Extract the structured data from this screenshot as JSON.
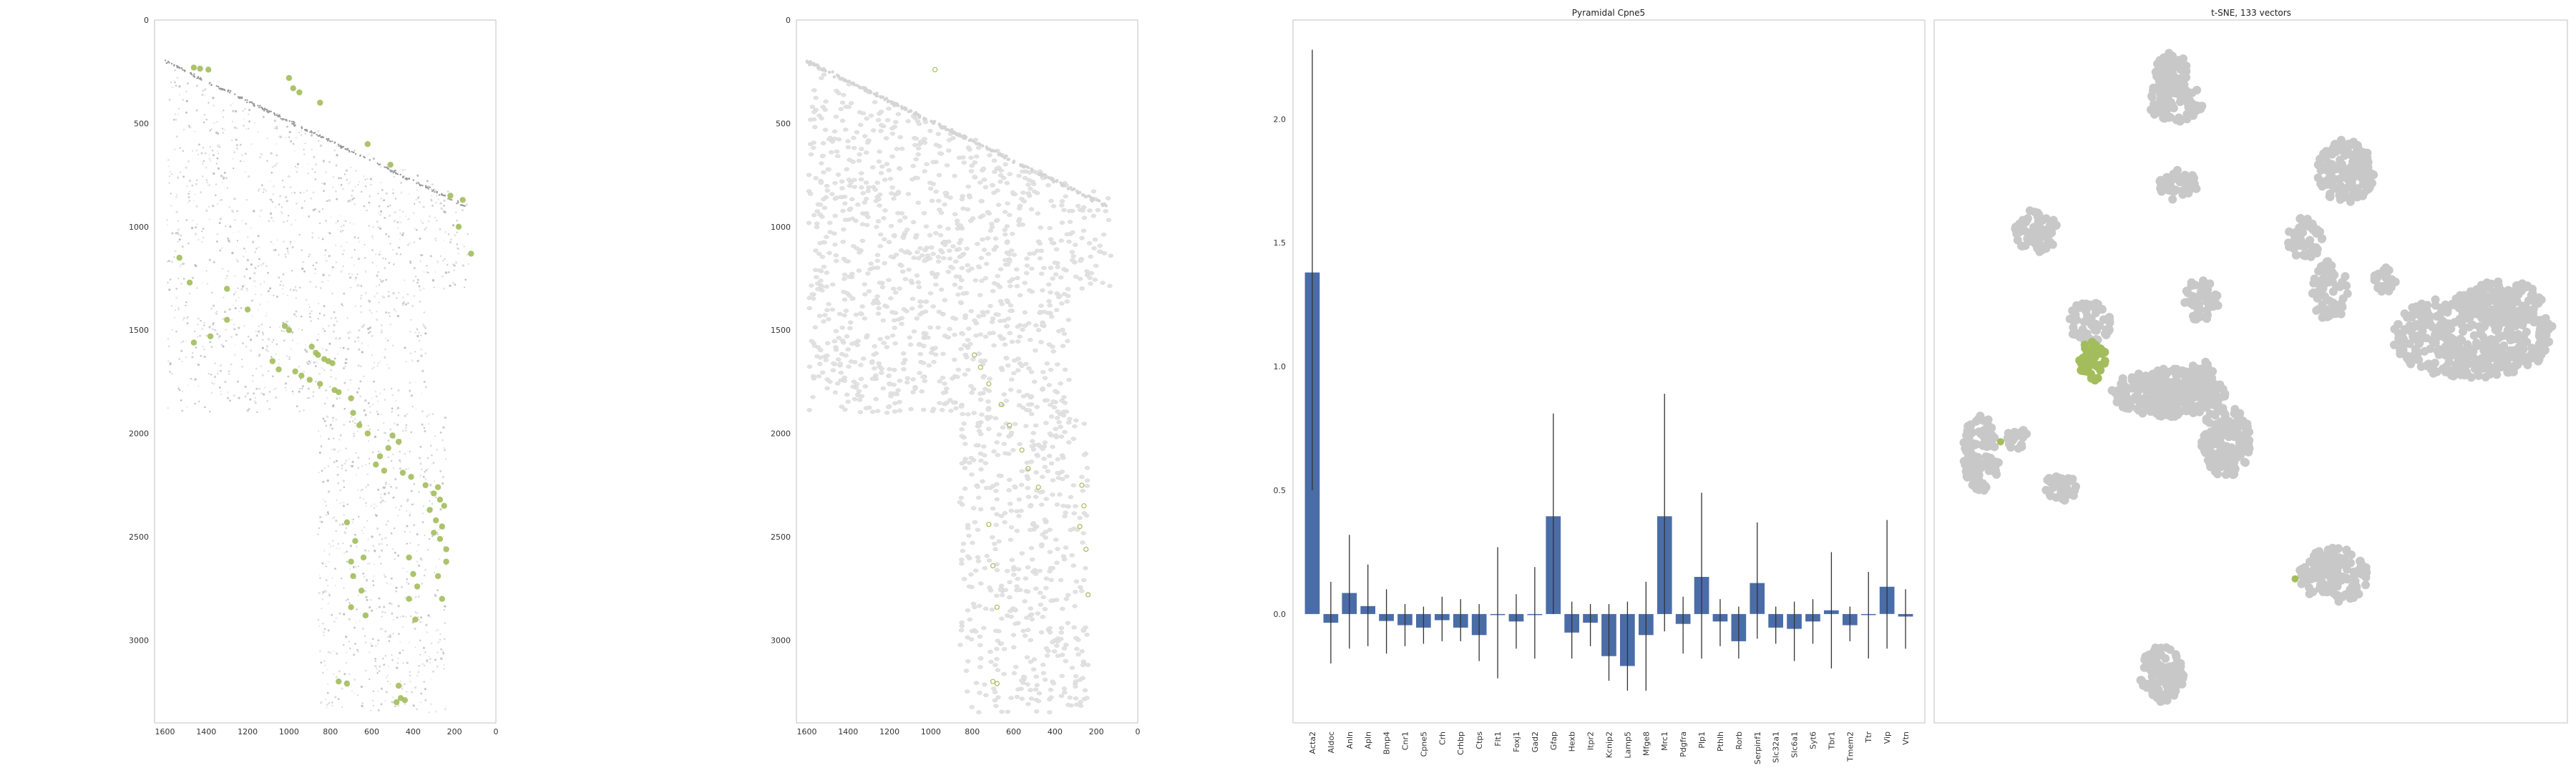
{
  "colors": {
    "highlight": "#a3bd5c",
    "bar": "#4a6da7",
    "tsne_gray": "#c8c8c8",
    "tissue_gray": "#e2e2e2",
    "axis": "#cccccc"
  },
  "chart_data": [
    {
      "type": "scatter",
      "title": "",
      "xlim": [
        1650,
        0
      ],
      "ylim": [
        3400,
        0
      ],
      "x_ticks": [
        "1600",
        "1400",
        "1200",
        "1000",
        "800",
        "600",
        "400",
        "200",
        "0"
      ],
      "y_ticks": [
        "0",
        "500",
        "1000",
        "1500",
        "2000",
        "2500",
        "3000"
      ],
      "background": "spatial tissue density (grayscale)",
      "highlight_points": [
        [
          1460,
          230
        ],
        [
          1430,
          235
        ],
        [
          1390,
          240
        ],
        [
          1000,
          280
        ],
        [
          980,
          330
        ],
        [
          950,
          350
        ],
        [
          850,
          400
        ],
        [
          620,
          600
        ],
        [
          510,
          700
        ],
        [
          220,
          850
        ],
        [
          160,
          870
        ],
        [
          1530,
          1150
        ],
        [
          1480,
          1270
        ],
        [
          1300,
          1450
        ],
        [
          1380,
          1530
        ],
        [
          1460,
          1560
        ],
        [
          1020,
          1480
        ],
        [
          1000,
          1500
        ],
        [
          890,
          1580
        ],
        [
          870,
          1610
        ],
        [
          860,
          1620
        ],
        [
          830,
          1640
        ],
        [
          810,
          1650
        ],
        [
          790,
          1660
        ],
        [
          1080,
          1650
        ],
        [
          1050,
          1690
        ],
        [
          970,
          1700
        ],
        [
          940,
          1720
        ],
        [
          900,
          1740
        ],
        [
          850,
          1760
        ],
        [
          780,
          1790
        ],
        [
          760,
          1800
        ],
        [
          700,
          1830
        ],
        [
          690,
          1900
        ],
        [
          660,
          1960
        ],
        [
          620,
          2000
        ],
        [
          500,
          2010
        ],
        [
          470,
          2040
        ],
        [
          520,
          2070
        ],
        [
          560,
          2110
        ],
        [
          580,
          2150
        ],
        [
          540,
          2180
        ],
        [
          450,
          2190
        ],
        [
          410,
          2210
        ],
        [
          340,
          2250
        ],
        [
          280,
          2260
        ],
        [
          300,
          2290
        ],
        [
          270,
          2320
        ],
        [
          250,
          2350
        ],
        [
          320,
          2370
        ],
        [
          290,
          2420
        ],
        [
          260,
          2450
        ],
        [
          300,
          2480
        ],
        [
          270,
          2510
        ],
        [
          240,
          2560
        ],
        [
          720,
          2430
        ],
        [
          680,
          2520
        ],
        [
          640,
          2600
        ],
        [
          700,
          2620
        ],
        [
          690,
          2690
        ],
        [
          650,
          2760
        ],
        [
          700,
          2840
        ],
        [
          630,
          2880
        ],
        [
          420,
          2600
        ],
        [
          400,
          2680
        ],
        [
          380,
          2740
        ],
        [
          420,
          2800
        ],
        [
          390,
          2900
        ],
        [
          760,
          3200
        ],
        [
          720,
          3210
        ],
        [
          470,
          3220
        ],
        [
          460,
          3280
        ],
        [
          440,
          3290
        ],
        [
          480,
          3300
        ],
        [
          260,
          2800
        ],
        [
          280,
          2690
        ],
        [
          240,
          2620
        ],
        [
          1300,
          1300
        ],
        [
          1200,
          1400
        ],
        [
          120,
          1130
        ],
        [
          180,
          1000
        ]
      ]
    },
    {
      "type": "scatter",
      "title": "",
      "xlim": [
        1650,
        0
      ],
      "ylim": [
        3400,
        0
      ],
      "x_ticks": [
        "1600",
        "1400",
        "1200",
        "1000",
        "800",
        "600",
        "400",
        "200",
        "0"
      ],
      "y_ticks": [
        "0",
        "500",
        "1000",
        "1500",
        "2000",
        "2500",
        "3000"
      ],
      "background": "segmented cells (light gray outlines)",
      "highlight_points": [
        [
          980,
          240
        ],
        [
          790,
          1620
        ],
        [
          760,
          1680
        ],
        [
          720,
          1760
        ],
        [
          660,
          1860
        ],
        [
          620,
          1960
        ],
        [
          560,
          2080
        ],
        [
          530,
          2170
        ],
        [
          480,
          2260
        ],
        [
          270,
          2250
        ],
        [
          260,
          2350
        ],
        [
          280,
          2450
        ],
        [
          250,
          2560
        ],
        [
          720,
          2440
        ],
        [
          700,
          2640
        ],
        [
          680,
          2840
        ],
        [
          700,
          3200
        ],
        [
          680,
          3210
        ],
        [
          240,
          2780
        ]
      ]
    },
    {
      "type": "bar",
      "title": "Pyramidal Cpne5",
      "xlabel": "",
      "ylabel": "",
      "ylim": [
        -0.44,
        2.4
      ],
      "y_ticks": [
        0.0,
        0.5,
        1.0,
        1.5,
        2.0
      ],
      "y_tick_labels": [
        "0.0",
        "0.5",
        "1.0",
        "1.5",
        "2.0"
      ],
      "categories": [
        "Acta2",
        "Aldoc",
        "Anln",
        "Apln",
        "Bmp4",
        "Cnr1",
        "Cpne5",
        "Crh",
        "Crhbp",
        "Ctps",
        "Flt1",
        "Foxj1",
        "Gad2",
        "Gfap",
        "Hexb",
        "Itpr2",
        "Kcnip2",
        "Lamp5",
        "Mfge8",
        "Mrc1",
        "Pdgfra",
        "Plp1",
        "Pthlh",
        "Rorb",
        "Serpinf1",
        "Slc32a1",
        "Slc6a1",
        "Syt6",
        "Tbr1",
        "Tmem2",
        "Ttr",
        "Vip",
        "Vtn"
      ],
      "values": [
        1.38,
        -0.035,
        0.085,
        0.032,
        -0.028,
        -0.045,
        -0.055,
        -0.025,
        -0.055,
        -0.085,
        0.0,
        -0.03,
        0.0,
        0.395,
        -0.075,
        -0.035,
        -0.17,
        -0.21,
        -0.085,
        0.395,
        -0.04,
        0.15,
        -0.03,
        -0.11,
        0.125,
        -0.055,
        -0.06,
        -0.03,
        0.015,
        -0.045,
        0.0,
        0.11,
        -0.01
      ],
      "err_low": [
        0.5,
        -0.2,
        -0.14,
        -0.13,
        -0.16,
        -0.13,
        -0.12,
        -0.11,
        -0.11,
        -0.19,
        -0.26,
        -0.14,
        -0.18,
        0.0,
        -0.18,
        -0.13,
        -0.27,
        -0.31,
        -0.31,
        -0.07,
        -0.16,
        -0.18,
        -0.13,
        -0.18,
        -0.1,
        -0.12,
        -0.19,
        -0.12,
        -0.22,
        -0.11,
        -0.18,
        -0.14,
        -0.14
      ],
      "err_high": [
        2.28,
        0.13,
        0.32,
        0.2,
        0.1,
        0.04,
        0.03,
        0.07,
        0.06,
        0.04,
        0.27,
        0.08,
        0.19,
        0.81,
        0.05,
        0.04,
        0.04,
        0.05,
        0.13,
        0.89,
        0.07,
        0.49,
        0.06,
        0.03,
        0.37,
        0.03,
        0.05,
        0.06,
        0.25,
        0.03,
        0.17,
        0.38,
        0.1
      ]
    },
    {
      "type": "scatter",
      "title": "t-SNE, 133 vectors",
      "xlim": [
        0,
        1
      ],
      "ylim": [
        0,
        1
      ],
      "grid": false,
      "clusters": [
        {
          "cx": 0.375,
          "cy": 0.075,
          "rx": 0.025,
          "ry": 0.032,
          "n": 70,
          "highlight": false
        },
        {
          "cx": 0.38,
          "cy": 0.115,
          "rx": 0.045,
          "ry": 0.03,
          "n": 80,
          "highlight": false
        },
        {
          "cx": 0.65,
          "cy": 0.215,
          "rx": 0.045,
          "ry": 0.045,
          "n": 140,
          "highlight": false
        },
        {
          "cx": 0.385,
          "cy": 0.235,
          "rx": 0.03,
          "ry": 0.022,
          "n": 50,
          "highlight": false
        },
        {
          "cx": 0.16,
          "cy": 0.3,
          "rx": 0.035,
          "ry": 0.032,
          "n": 70,
          "highlight": false
        },
        {
          "cx": 0.585,
          "cy": 0.31,
          "rx": 0.028,
          "ry": 0.03,
          "n": 50,
          "highlight": false
        },
        {
          "cx": 0.625,
          "cy": 0.385,
          "rx": 0.028,
          "ry": 0.045,
          "n": 60,
          "highlight": false
        },
        {
          "cx": 0.71,
          "cy": 0.37,
          "rx": 0.02,
          "ry": 0.018,
          "n": 25,
          "highlight": false
        },
        {
          "cx": 0.42,
          "cy": 0.4,
          "rx": 0.03,
          "ry": 0.03,
          "n": 50,
          "highlight": false
        },
        {
          "cx": 0.85,
          "cy": 0.45,
          "rx": 0.13,
          "ry": 0.06,
          "n": 420,
          "highlight": false
        },
        {
          "cx": 0.9,
          "cy": 0.4,
          "rx": 0.06,
          "ry": 0.03,
          "n": 120,
          "highlight": false
        },
        {
          "cx": 0.245,
          "cy": 0.43,
          "rx": 0.035,
          "ry": 0.03,
          "n": 60,
          "highlight": false
        },
        {
          "cx": 0.25,
          "cy": 0.485,
          "rx": 0.022,
          "ry": 0.028,
          "n": 40,
          "highlight": true
        },
        {
          "cx": 0.37,
          "cy": 0.53,
          "rx": 0.09,
          "ry": 0.035,
          "n": 280,
          "highlight": false
        },
        {
          "cx": 0.46,
          "cy": 0.6,
          "rx": 0.04,
          "ry": 0.05,
          "n": 180,
          "highlight": false
        },
        {
          "cx": 0.42,
          "cy": 0.51,
          "rx": 0.025,
          "ry": 0.025,
          "n": 40,
          "highlight": false
        },
        {
          "cx": 0.075,
          "cy": 0.615,
          "rx": 0.03,
          "ry": 0.055,
          "n": 110,
          "highlight": false
        },
        {
          "cx": 0.13,
          "cy": 0.595,
          "rx": 0.02,
          "ry": 0.015,
          "n": 20,
          "highlight": false
        },
        {
          "cx": 0.2,
          "cy": 0.665,
          "rx": 0.025,
          "ry": 0.02,
          "n": 35,
          "highlight": false
        },
        {
          "cx": 0.63,
          "cy": 0.79,
          "rx": 0.055,
          "ry": 0.04,
          "n": 130,
          "highlight": false
        },
        {
          "cx": 0.36,
          "cy": 0.93,
          "rx": 0.035,
          "ry": 0.04,
          "n": 100,
          "highlight": false
        }
      ],
      "highlight_extra": [
        [
          0.57,
          0.795
        ],
        [
          0.105,
          0.6
        ]
      ]
    }
  ]
}
